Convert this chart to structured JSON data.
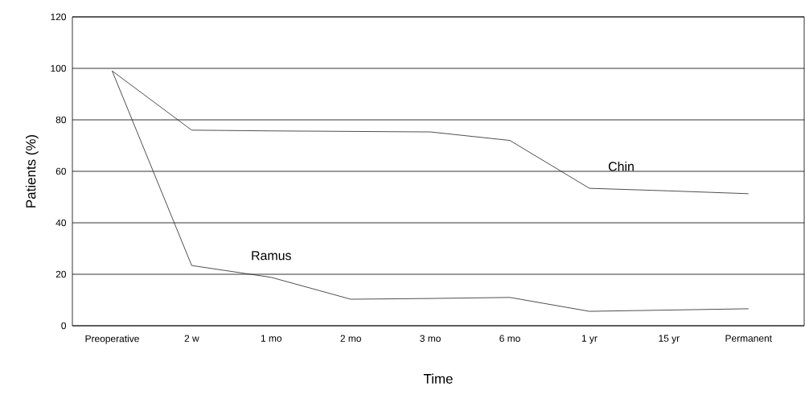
{
  "chart_data": {
    "type": "line",
    "xlabel": "Time",
    "ylabel": "Patients (%)",
    "categories": [
      "Preoperative",
      "2 w",
      "1 mo",
      "2 mo",
      "3 mo",
      "6 mo",
      "1 yr",
      "15 yr",
      "Permanent"
    ],
    "series": [
      {
        "name": "Chin",
        "color": "#222222",
        "values": [
          99,
          76,
          75.7,
          75.5,
          75.3,
          72,
          53.4,
          52.4,
          51.3
        ]
      },
      {
        "name": "Ramus",
        "color": "#222222",
        "values": [
          99,
          23.4,
          18.8,
          10.3,
          10.6,
          11,
          5.6,
          6.1,
          6.6
        ]
      }
    ],
    "ylim": [
      0,
      120
    ],
    "yticks": [
      0,
      20,
      40,
      60,
      80,
      100,
      120
    ],
    "grid": "y",
    "marker": "none",
    "line_style": "solid"
  }
}
